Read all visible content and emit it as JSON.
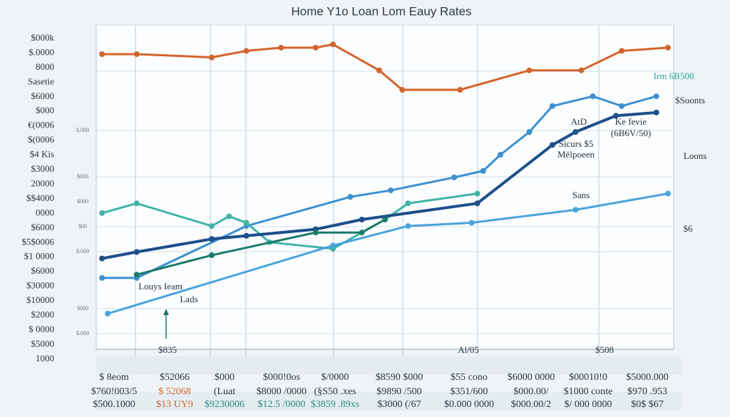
{
  "chart_data": {
    "type": "line",
    "title": "Home Y1o Loan Lom Eauy Rates",
    "xlim": [
      0,
      100
    ],
    "ylim": [
      0,
      100
    ],
    "y_labels": [
      "$000k",
      "$.0000",
      "8000",
      "Sasetie",
      "$6000",
      "$000",
      "€(0006",
      "$(0006",
      "$4 Kis",
      "$3000",
      "20000",
      "$$4000",
      "0000",
      "$6000",
      "$5$0006",
      "$1 0000",
      "$6000",
      "$30000",
      "$10000",
      "$2000",
      "$ 0000",
      "$5000",
      "1000"
    ],
    "inner_labels": [
      "$.000",
      "$000",
      "$000",
      "$00",
      "$.000",
      "$000",
      "$.000"
    ],
    "series": [
      {
        "color": "#d2642c",
        "x": [
          1,
          7,
          20,
          26,
          32,
          38,
          41,
          49,
          53,
          63,
          75,
          84,
          91,
          99
        ],
        "values": [
          91,
          91,
          90,
          92,
          93,
          93,
          94,
          86,
          80,
          80,
          86,
          86,
          92,
          93
        ]
      },
      {
        "color": "#3a90d0",
        "x": [
          1,
          7,
          26,
          44,
          51,
          62,
          67,
          70,
          75,
          79,
          86,
          91,
          97
        ],
        "values": [
          22,
          22,
          38,
          47,
          49,
          53,
          55,
          60,
          67,
          75,
          78,
          75,
          78
        ]
      },
      {
        "color": "#3fb5a8",
        "x": [
          1,
          7,
          20,
          23,
          26,
          30,
          41,
          50,
          54,
          66
        ],
        "values": [
          42,
          45,
          38,
          41,
          39,
          33,
          31,
          40,
          45,
          48
        ]
      },
      {
        "color": "#1d4f8a",
        "x": [
          1,
          7,
          20,
          26,
          38,
          46,
          66,
          79,
          83,
          90,
          97
        ],
        "values": [
          28,
          30,
          34,
          35,
          37,
          40,
          45,
          63,
          67,
          72,
          73
        ]
      },
      {
        "color": "#1b7a6a",
        "x": [
          7,
          20,
          38,
          46,
          50
        ],
        "values": [
          23,
          29,
          36,
          36,
          40
        ]
      },
      {
        "color": "#4aa3dc",
        "x": [
          2,
          41,
          54,
          65,
          83,
          99
        ],
        "values": [
          11,
          32,
          38,
          39,
          43,
          48
        ]
      }
    ],
    "annotations": [
      "Irm 6B500",
      "$Soonts",
      "Loons",
      "$6",
      "AtD",
      "Ke fevie",
      "(6B6V/50)",
      "Sicurs $5",
      "Mëlpoeen",
      "Sans",
      "Louys Ieam",
      "Lads",
      "$835",
      "Al/05",
      "$508"
    ],
    "bottom_rows": [
      [
        "$ 8eom",
        "$52066",
        "$000",
        "$000!0os",
        "$/0000",
        "$8590 $000",
        "$55 cono",
        "$6000 0000",
        "$00010!0",
        "$5000.000"
      ],
      [
        "$760!003/5",
        "$ 52068",
        "(Luat",
        "$8000 /0000",
        "(§S50 .xes",
        "$9890 /500",
        "$351/600",
        "$000.00/",
        "$1000 conte",
        "$970 .953"
      ],
      [
        "$500.1000",
        "$13 UY9",
        "$9230006",
        "$12.5 /0000",
        "$3859 .89xs",
        "$3000 (/67",
        "$0.000 0000",
        "$000.00/2",
        "$/ 000 0000",
        "$0$ $67"
      ]
    ]
  }
}
